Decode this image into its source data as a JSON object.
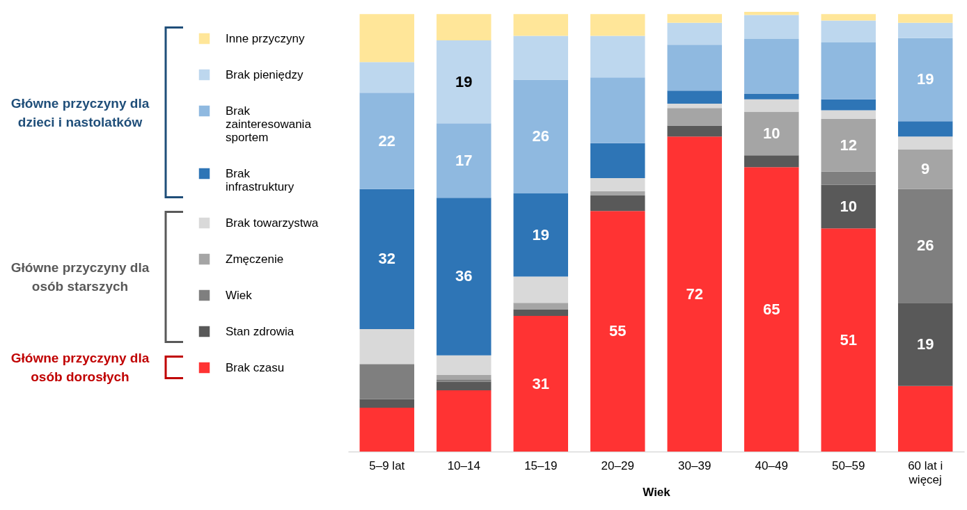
{
  "chart_data": {
    "type": "bar",
    "stacked": true,
    "xlabel": "Wiek",
    "categories": [
      "5–9 lat",
      "10–14",
      "15–19",
      "20–29",
      "30–39",
      "40–49",
      "50–59",
      "60 lat i więcej"
    ],
    "series": [
      {
        "name": "Brak czasu",
        "color": "#ff3333",
        "values": [
          10,
          14,
          31,
          55,
          72,
          65,
          51,
          15
        ],
        "value_labels": [
          null,
          null,
          "31",
          "55",
          "72",
          "65",
          "51",
          null
        ]
      },
      {
        "name": "Stan zdrowia",
        "color": "#595959",
        "values": [
          2,
          2,
          1.5,
          3.5,
          2.5,
          2.7,
          10,
          19
        ],
        "value_labels": [
          null,
          null,
          null,
          null,
          null,
          null,
          "10",
          "19"
        ]
      },
      {
        "name": "Wiek",
        "color": "#7f7f7f",
        "values": [
          8,
          0.5,
          0,
          0,
          0,
          0,
          3,
          26
        ],
        "value_labels": [
          null,
          null,
          null,
          null,
          null,
          null,
          null,
          "26"
        ]
      },
      {
        "name": "Zmęczenie",
        "color": "#a5a5a5",
        "values": [
          0,
          1,
          1.5,
          1,
          4,
          10,
          12,
          9
        ],
        "value_labels": [
          null,
          null,
          null,
          null,
          null,
          "10",
          "12",
          "9"
        ]
      },
      {
        "name": "Brak towarzystwa",
        "color": "#d9d9d9",
        "values": [
          8,
          4.5,
          6,
          3,
          1,
          2.8,
          2,
          3
        ],
        "value_labels": [
          null,
          null,
          null,
          null,
          null,
          null,
          null,
          null
        ]
      },
      {
        "name": "Brak infrastruktury",
        "color": "#2e75b6",
        "values": [
          32,
          36,
          19,
          8,
          3,
          1.3,
          2.5,
          3.5
        ],
        "value_labels": [
          "32",
          "36",
          "19",
          null,
          null,
          null,
          null,
          null
        ]
      },
      {
        "name": "Brak zainteresowania sportem",
        "color": "#8fb9e0",
        "values": [
          22,
          17,
          26,
          15,
          10.5,
          12.5,
          13,
          19
        ],
        "value_labels": [
          "22",
          "17",
          "26",
          null,
          null,
          null,
          null,
          "19"
        ]
      },
      {
        "name": "Brak pieniędzy",
        "color": "#bdd7ee",
        "values": [
          7,
          19,
          10,
          9.5,
          5,
          5.5,
          5,
          3.5
        ],
        "value_labels": [
          null,
          "19",
          null,
          null,
          null,
          null,
          null,
          null
        ]
      },
      {
        "name": "Inne przyczyny",
        "color": "#ffe699",
        "values": [
          11,
          6,
          5,
          5,
          2,
          0.7,
          1.5,
          2
        ],
        "value_labels": [
          null,
          null,
          null,
          null,
          null,
          null,
          null,
          null
        ]
      }
    ],
    "annotations": [
      "Główne przyczyny dla dzieci i nastolatków",
      "Główne przyczyny dla osób starszych",
      "Główne przyczyny dla osób dorosłych"
    ],
    "legend": "left",
    "tick_labels": "x",
    "grid": false
  }
}
